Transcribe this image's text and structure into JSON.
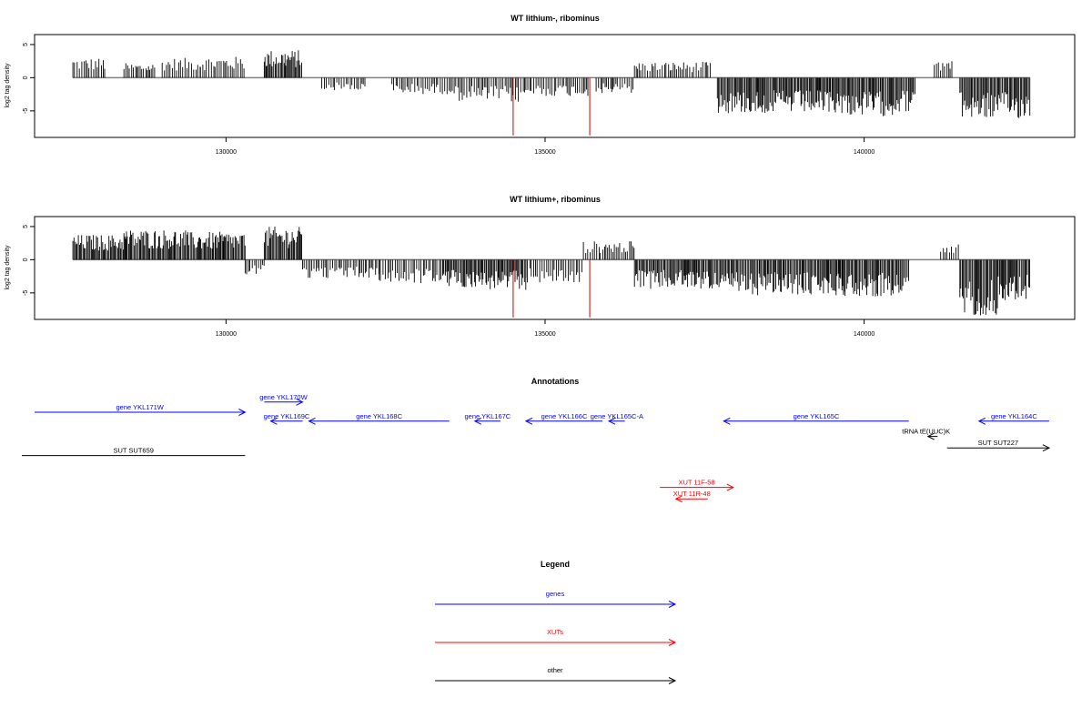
{
  "chart_data": [
    {
      "type": "bar",
      "title": "WT lithium-, ribominus",
      "ylabel": "log2 tag density",
      "xlim": [
        127000,
        143300
      ],
      "ylim": [
        -9,
        6.5
      ],
      "xticks": [
        130000,
        135000,
        140000
      ],
      "xtick_labels": [
        "130000",
        "135000",
        "140000"
      ],
      "yticks": [
        -5,
        0,
        5
      ],
      "ytick_labels": [
        "-5",
        "0",
        "5"
      ],
      "baseline_range": [
        127600,
        142600
      ],
      "colors": {
        "bars": "#000000",
        "highlight": "#cc0000",
        "baseline": "#808080"
      },
      "regions": [
        {
          "start": 127600,
          "end": 128100,
          "level": 3.0
        },
        {
          "start": 128400,
          "end": 128900,
          "level": 2.2
        },
        {
          "start": 129000,
          "end": 129600,
          "level": 3.0
        },
        {
          "start": 129600,
          "end": 130300,
          "level": 3.2
        },
        {
          "start": 130600,
          "end": 131200,
          "level": 4.2
        },
        {
          "start": 131500,
          "end": 132200,
          "level": -2.0
        },
        {
          "start": 132600,
          "end": 133600,
          "level": -2.5
        },
        {
          "start": 133600,
          "end": 134400,
          "level": -3.5
        },
        {
          "start": 134400,
          "end": 134700,
          "level": -3.8
        },
        {
          "start": 134700,
          "end": 135700,
          "level": -2.8
        },
        {
          "start": 135800,
          "end": 136400,
          "level": -2.4
        },
        {
          "start": 136400,
          "end": 137600,
          "level": 2.4
        },
        {
          "start": 137700,
          "end": 139700,
          "level": -5.4
        },
        {
          "start": 139700,
          "end": 140500,
          "level": -5.8
        },
        {
          "start": 140500,
          "end": 140800,
          "level": -5.2
        },
        {
          "start": 141100,
          "end": 141400,
          "level": 2.8
        },
        {
          "start": 141500,
          "end": 142600,
          "level": -6.2
        }
      ],
      "highlights": [
        {
          "x": 134500,
          "value": -8.7
        },
        {
          "x": 135700,
          "value": -8.7
        }
      ]
    },
    {
      "type": "bar",
      "title": "WT lithium+, ribominus",
      "ylabel": "log2 tag density",
      "xlim": [
        127000,
        143300
      ],
      "ylim": [
        -9,
        6.5
      ],
      "xticks": [
        130000,
        135000,
        140000
      ],
      "xtick_labels": [
        "130000",
        "135000",
        "140000"
      ],
      "yticks": [
        -5,
        0,
        5
      ],
      "ytick_labels": [
        "-5",
        "0",
        "5"
      ],
      "baseline_range": [
        127600,
        142600
      ],
      "colors": {
        "bars": "#000000",
        "highlight": "#cc0000",
        "baseline": "#808080"
      },
      "regions": [
        {
          "start": 127600,
          "end": 128400,
          "level": 3.8
        },
        {
          "start": 128400,
          "end": 129400,
          "level": 4.6
        },
        {
          "start": 129400,
          "end": 130300,
          "level": 4.2
        },
        {
          "start": 130300,
          "end": 130600,
          "level": -2.2
        },
        {
          "start": 130600,
          "end": 131200,
          "level": 5.0
        },
        {
          "start": 131200,
          "end": 132400,
          "level": -2.8
        },
        {
          "start": 132400,
          "end": 133400,
          "level": -3.6
        },
        {
          "start": 133400,
          "end": 134000,
          "level": -4.2
        },
        {
          "start": 134000,
          "end": 134700,
          "level": -4.6
        },
        {
          "start": 134700,
          "end": 135600,
          "level": -3.6
        },
        {
          "start": 135600,
          "end": 136400,
          "level": 2.8
        },
        {
          "start": 136400,
          "end": 137700,
          "level": -4.4
        },
        {
          "start": 137700,
          "end": 139700,
          "level": -5.4
        },
        {
          "start": 139700,
          "end": 140700,
          "level": -5.6
        },
        {
          "start": 141200,
          "end": 141500,
          "level": 2.6
        },
        {
          "start": 141500,
          "end": 142100,
          "level": -8.4
        },
        {
          "start": 142100,
          "end": 142600,
          "level": -6.2
        }
      ],
      "highlights": [
        {
          "x": 134500,
          "value": -8.7
        },
        {
          "x": 135700,
          "value": -8.7
        }
      ]
    }
  ],
  "annotations": {
    "title": "Annotations",
    "features": [
      {
        "label": "gene YKL171W",
        "start": 127000,
        "end": 130300,
        "strand": "+",
        "kind": "gene",
        "row": 0
      },
      {
        "label": "gene YKL170W",
        "start": 130600,
        "end": 131200,
        "strand": "+",
        "kind": "gene",
        "row": -0.8
      },
      {
        "label": "gene YKL169C",
        "start": 130700,
        "end": 131200,
        "strand": "-",
        "kind": "gene",
        "row": 0.7
      },
      {
        "label": "gene YKL168C",
        "start": 131300,
        "end": 133500,
        "strand": "-",
        "kind": "gene",
        "row": 0.7
      },
      {
        "label": "gene YKL167C",
        "start": 133900,
        "end": 134300,
        "strand": "-",
        "kind": "gene",
        "row": 0.7
      },
      {
        "label": "gene YKL166C",
        "start": 134700,
        "end": 135900,
        "strand": "-",
        "kind": "gene",
        "row": 0.7
      },
      {
        "label": "gene YKL165C-A",
        "start": 136000,
        "end": 136250,
        "strand": "-",
        "kind": "gene",
        "row": 0.7
      },
      {
        "label": "gene YKL165C",
        "start": 137800,
        "end": 140700,
        "strand": "-",
        "kind": "gene",
        "row": 0.7
      },
      {
        "label": "gene YKL164C",
        "start": 141800,
        "end": 142900,
        "strand": "-",
        "kind": "gene",
        "row": 0.7
      },
      {
        "label": "tRNA tE(UUC)K",
        "start": 141000,
        "end": 141150,
        "strand": "-",
        "kind": "other",
        "row": 1.9
      },
      {
        "label": "SUT SUT227",
        "start": 141300,
        "end": 142900,
        "strand": "+",
        "kind": "other",
        "row": 2.8
      },
      {
        "label": "SUT SUT659",
        "start": 126800,
        "end": 130300,
        "strand": "",
        "kind": "other",
        "row": 3.4
      },
      {
        "label": "XUT 11F-58",
        "start": 136800,
        "end": 137950,
        "strand": "+",
        "kind": "xut",
        "row": 5.9
      },
      {
        "label": "XUT 11R-48",
        "start": 137050,
        "end": 137550,
        "strand": "-",
        "kind": "xut",
        "row": 6.8
      }
    ],
    "colors": {
      "gene": "#0000ff",
      "xut": "#ff0000",
      "other": "#000000"
    }
  },
  "legend": {
    "title": "Legend",
    "items": [
      {
        "label": "genes",
        "color": "#0000ff"
      },
      {
        "label": "XUTs",
        "color": "#ff0000"
      },
      {
        "label": "other",
        "color": "#000000"
      }
    ]
  }
}
